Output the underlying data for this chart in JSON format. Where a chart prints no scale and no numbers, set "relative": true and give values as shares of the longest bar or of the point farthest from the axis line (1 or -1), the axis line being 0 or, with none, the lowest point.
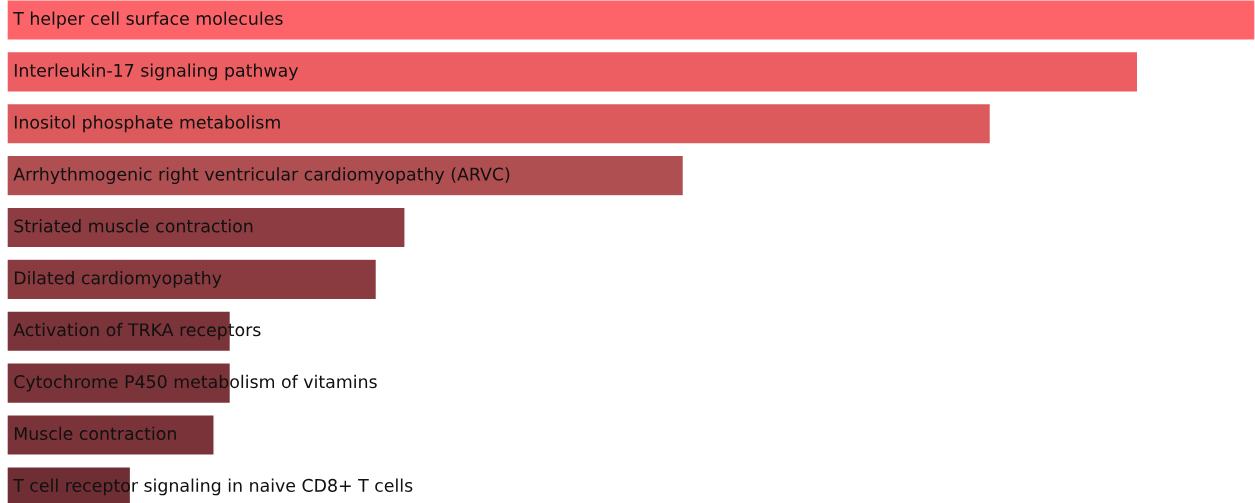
{
  "chart_data": {
    "type": "bar",
    "orientation": "horizontal",
    "relative": true,
    "categories": [
      "T helper cell surface molecules",
      "Interleukin-17 signaling pathway",
      "Inositol phosphate metabolism",
      "Arrhythmogenic right ventricular cardiomyopathy (ARVC)",
      "Striated muscle contraction",
      "Dilated cardiomyopathy",
      "Activation of TRKA receptors",
      "Cytochrome P450 metabolism of vitamins",
      "Muscle contraction",
      "T cell receptor signaling in naive CD8+ T cells"
    ],
    "values": [
      1,
      0.906,
      0.788,
      0.542,
      0.319,
      0.296,
      0.179,
      0.179,
      0.166,
      0.099
    ],
    "colors": [
      "#fc6469",
      "#ec5e62",
      "#dc5a5c",
      "#b04f52",
      "#8d3d42",
      "#8a3b40",
      "#7b3439",
      "#7b3439",
      "#7a3338",
      "#6e2e33"
    ],
    "legend": false
  }
}
